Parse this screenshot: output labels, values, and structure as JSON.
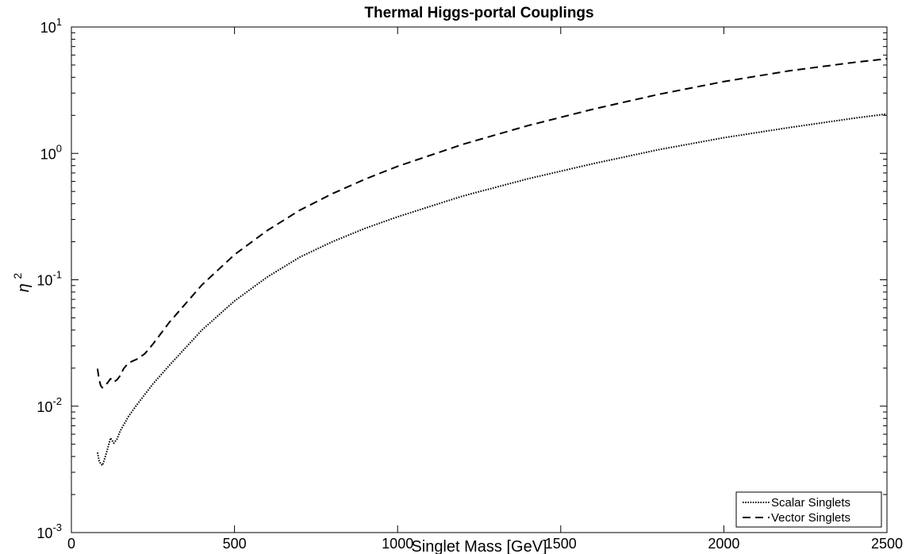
{
  "chart_data": {
    "type": "line",
    "title": "Thermal Higgs-portal Couplings",
    "xlabel": "Singlet Mass [GeV]",
    "ylabel_symbol": "η",
    "ylabel_exponent": "2",
    "xlim": [
      0,
      2500
    ],
    "ylim": [
      0.001,
      10
    ],
    "yscale": "log",
    "grid": false,
    "legend_position": "bottom-right",
    "x_ticks": [
      "0",
      "500",
      "1000",
      "1500",
      "2000",
      "2500"
    ],
    "y_ticks": [
      {
        "base": "10",
        "exp": "-3"
      },
      {
        "base": "10",
        "exp": "-2"
      },
      {
        "base": "10",
        "exp": "-1"
      },
      {
        "base": "10",
        "exp": "0"
      },
      {
        "base": "10",
        "exp": "1"
      }
    ],
    "series": [
      {
        "name": "Scalar Singlets",
        "style": "dotted",
        "color": "#000000",
        "x": [
          80,
          85,
          90,
          95,
          100,
          110,
          120,
          130,
          140,
          150,
          175,
          200,
          250,
          300,
          400,
          500,
          600,
          700,
          800,
          900,
          1000,
          1200,
          1400,
          1600,
          1800,
          2000,
          2200,
          2400,
          2500
        ],
        "y": [
          0.0043,
          0.0037,
          0.0035,
          0.0034,
          0.0037,
          0.0045,
          0.0056,
          0.0051,
          0.0055,
          0.0064,
          0.0083,
          0.0102,
          0.015,
          0.021,
          0.04,
          0.068,
          0.105,
          0.151,
          0.2,
          0.255,
          0.315,
          0.46,
          0.63,
          0.83,
          1.07,
          1.33,
          1.6,
          1.9,
          2.05
        ]
      },
      {
        "name": "Vector Singlets",
        "style": "dashed",
        "color": "#000000",
        "x": [
          80,
          85,
          90,
          95,
          100,
          110,
          120,
          130,
          140,
          150,
          160,
          175,
          200,
          225,
          250,
          300,
          400,
          500,
          600,
          700,
          800,
          900,
          1000,
          1200,
          1400,
          1600,
          1800,
          2000,
          2200,
          2400,
          2500
        ],
        "y": [
          0.0198,
          0.0162,
          0.0145,
          0.014,
          0.0145,
          0.0152,
          0.0165,
          0.0155,
          0.0162,
          0.0175,
          0.0198,
          0.022,
          0.0235,
          0.026,
          0.031,
          0.046,
          0.091,
          0.158,
          0.245,
          0.355,
          0.48,
          0.625,
          0.79,
          1.18,
          1.66,
          2.24,
          2.93,
          3.7,
          4.5,
          5.25,
          5.6
        ]
      }
    ]
  }
}
